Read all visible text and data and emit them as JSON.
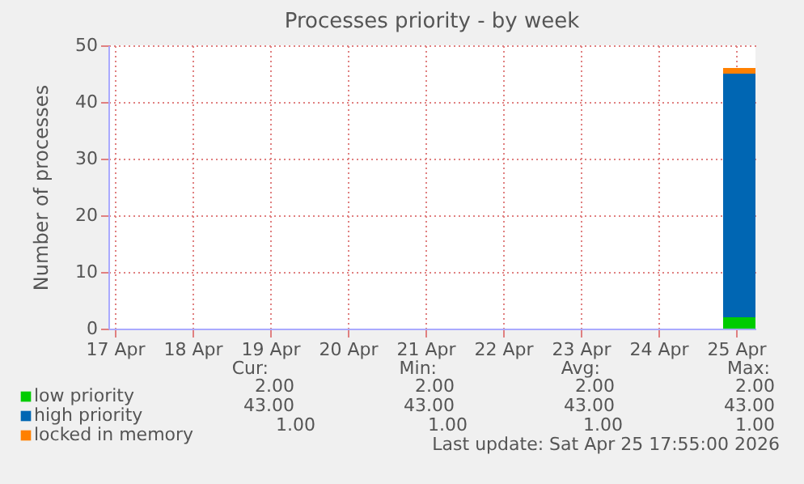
{
  "chart_data": {
    "type": "area",
    "title": "Processes priority - by week",
    "ylabel": "Number of processes",
    "x": [
      "2026-04-24T20:00",
      "2026-04-25T06:00"
    ],
    "series": [
      {
        "name": "low priority",
        "color": "#00cc00",
        "values": [
          2,
          2
        ]
      },
      {
        "name": "high priority",
        "color": "#0066b3",
        "values": [
          43,
          43
        ]
      },
      {
        "name": "locked in memory",
        "color": "#ff8000",
        "values": [
          1,
          1
        ]
      }
    ],
    "stacked": true,
    "xlim": [
      "2026-04-16T22:00",
      "2026-04-25T06:00"
    ],
    "xticks": [
      {
        "value": "2026-04-17",
        "label": "17 Apr"
      },
      {
        "value": "2026-04-18",
        "label": "18 Apr"
      },
      {
        "value": "2026-04-19",
        "label": "19 Apr"
      },
      {
        "value": "2026-04-20",
        "label": "20 Apr"
      },
      {
        "value": "2026-04-21",
        "label": "21 Apr"
      },
      {
        "value": "2026-04-22",
        "label": "22 Apr"
      },
      {
        "value": "2026-04-23",
        "label": "23 Apr"
      },
      {
        "value": "2026-04-24",
        "label": "24 Apr"
      },
      {
        "value": "2026-04-25",
        "label": "25 Apr"
      }
    ],
    "ylim": [
      0,
      50
    ],
    "yticks": [
      0,
      10,
      20,
      30,
      40,
      50
    ],
    "grid": true,
    "legend": "bottom",
    "annotations": [
      "Cur:",
      "Min:",
      "Avg:",
      "Max:",
      "2.00",
      "2.00",
      "2.00",
      "2.00",
      "43.00",
      "43.00",
      "43.00",
      "43.00",
      "1.00",
      "1.00",
      "1.00",
      "1.00",
      "Last update: Sat Apr 25 17:55:00 2026"
    ]
  }
}
